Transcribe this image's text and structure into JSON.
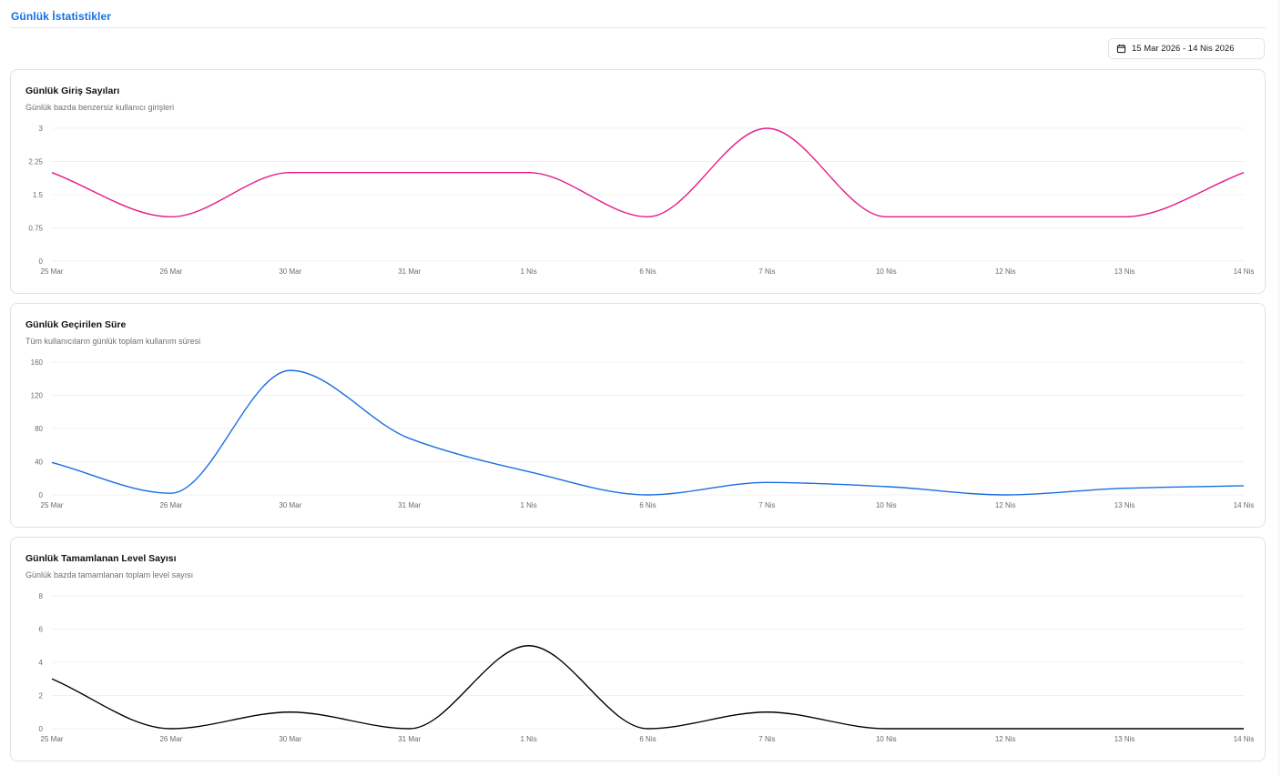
{
  "page": {
    "title": "Günlük İstatistikler"
  },
  "date_range": {
    "icon": "calendar-icon",
    "label": "15 Mar 2026 - 14 Nis 2026"
  },
  "cards": [
    {
      "title": "Günlük Giriş Sayıları",
      "subtitle": "Günlük bazda benzersiz kullanıcı girişleri"
    },
    {
      "title": "Günlük Geçirilen Süre",
      "subtitle": "Tüm kullanıcıların günlük toplam kullanım süresi"
    },
    {
      "title": "Günlük Tamamlanan Level Sayısı",
      "subtitle": "Günlük bazda tamamlanan toplam level sayısı"
    }
  ],
  "chart_data": [
    {
      "type": "line",
      "title": "Günlük Giriş Sayıları",
      "categories": [
        "25 Mar",
        "26 Mar",
        "30 Mar",
        "31 Mar",
        "1 Nis",
        "6 Nis",
        "7 Nis",
        "10 Nis",
        "12 Nis",
        "13 Nis",
        "14 Nis"
      ],
      "series": [
        {
          "values": [
            2,
            1,
            2,
            2,
            2,
            1,
            3,
            1,
            1,
            1,
            2
          ],
          "color": "#e6198a"
        }
      ],
      "yticks": [
        "0",
        "0.75",
        "1.5",
        "2.25",
        "3"
      ],
      "ylim": [
        0,
        3
      ],
      "grid": true
    },
    {
      "type": "line",
      "title": "Günlük Geçirilen Süre",
      "categories": [
        "25 Mar",
        "26 Mar",
        "30 Mar",
        "31 Mar",
        "1 Nis",
        "6 Nis",
        "7 Nis",
        "10 Nis",
        "12 Nis",
        "13 Nis",
        "14 Nis"
      ],
      "series": [
        {
          "values": [
            39,
            2,
            150,
            68,
            28,
            0,
            15,
            10,
            0,
            8,
            11
          ],
          "color": "#1a6fe0"
        }
      ],
      "yticks": [
        "0",
        "40",
        "80",
        "120",
        "160"
      ],
      "ylim": [
        0,
        160
      ],
      "grid": true
    },
    {
      "type": "line",
      "title": "Günlük Tamamlanan Level Sayısı",
      "categories": [
        "25 Mar",
        "26 Mar",
        "30 Mar",
        "31 Mar",
        "1 Nis",
        "6 Nis",
        "7 Nis",
        "10 Nis",
        "12 Nis",
        "13 Nis",
        "14 Nis"
      ],
      "series": [
        {
          "values": [
            3,
            0,
            1,
            0,
            5,
            0,
            1,
            0,
            0,
            0,
            0
          ],
          "color": "#000000"
        }
      ],
      "yticks": [
        "0",
        "2",
        "4",
        "6",
        "8"
      ],
      "ylim": [
        0,
        8
      ],
      "grid": true
    }
  ]
}
